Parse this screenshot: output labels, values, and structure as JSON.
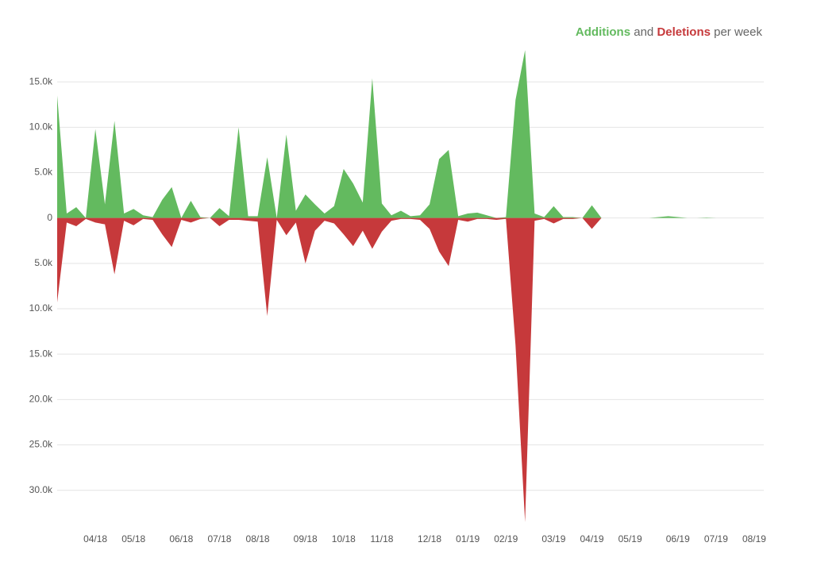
{
  "chart_data": {
    "type": "area",
    "title_parts": {
      "joiner": "and",
      "suffix": "per week"
    },
    "categories": [
      null,
      null,
      null,
      null,
      "04/18",
      null,
      null,
      null,
      "05/18",
      null,
      null,
      null,
      null,
      "06/18",
      null,
      null,
      null,
      "07/18",
      null,
      null,
      null,
      "08/18",
      null,
      null,
      null,
      null,
      "09/18",
      null,
      null,
      null,
      "10/18",
      null,
      null,
      null,
      "11/18",
      null,
      null,
      null,
      null,
      "12/18",
      null,
      null,
      null,
      "01/19",
      null,
      null,
      null,
      "02/19",
      null,
      null,
      null,
      null,
      "03/19",
      null,
      null,
      null,
      "04/19",
      null,
      null,
      null,
      "05/19",
      null,
      null,
      null,
      null,
      "06/19",
      null,
      null,
      null,
      "07/19",
      null,
      null,
      null,
      "08/19",
      null
    ],
    "series": [
      {
        "name": "Additions",
        "color": "#63ba5f",
        "values": [
          13500,
          500,
          1200,
          0,
          9800,
          1500,
          10700,
          500,
          1000,
          300,
          100,
          2000,
          3400,
          0,
          1900,
          100,
          0,
          1100,
          200,
          10000,
          200,
          200,
          6700,
          0,
          9200,
          800,
          2600,
          1500,
          500,
          1300,
          5400,
          3800,
          1700,
          15400,
          1600,
          300,
          800,
          200,
          300,
          1500,
          6500,
          7500,
          200,
          500,
          600,
          300,
          0,
          100,
          13000,
          18500,
          500,
          100,
          1300,
          100,
          100,
          0,
          1400,
          0,
          0,
          0,
          0,
          0,
          0,
          100,
          200,
          100,
          0,
          0,
          50,
          0,
          0,
          0,
          0,
          0,
          0
        ]
      },
      {
        "name": "Deletions",
        "color": "#c6393b",
        "values": [
          -9300,
          -500,
          -900,
          -100,
          -500,
          -700,
          -6200,
          -300,
          -800,
          -100,
          -200,
          -1800,
          -3200,
          -200,
          -500,
          -100,
          0,
          -900,
          -200,
          -200,
          -300,
          -400,
          -10800,
          -200,
          -1900,
          -500,
          -5000,
          -1400,
          -300,
          -600,
          -1800,
          -3100,
          -1400,
          -3400,
          -1500,
          -300,
          -100,
          -100,
          -200,
          -1200,
          -3700,
          -5300,
          -200,
          -400,
          -100,
          -100,
          -200,
          -100,
          -14000,
          -33500,
          -300,
          -100,
          -600,
          -100,
          -100,
          0,
          -1200,
          0,
          0,
          0,
          0,
          0,
          0,
          0,
          0,
          0,
          0,
          0,
          0,
          0,
          0,
          0,
          0,
          0,
          0
        ]
      }
    ],
    "ylim": [
      -33700,
      18600
    ],
    "yticks": [
      {
        "value": 15000,
        "label": "15.0k"
      },
      {
        "value": 10000,
        "label": "10.0k"
      },
      {
        "value": 5000,
        "label": "5.0k"
      },
      0,
      {
        "value": -5000,
        "label": "5.0k"
      },
      {
        "value": -10000,
        "label": "10.0k"
      },
      {
        "value": -15000,
        "label": "15.0k"
      },
      {
        "value": -20000,
        "label": "20.0k"
      },
      {
        "value": -25000,
        "label": "25.0k"
      },
      {
        "value": -30000,
        "label": "30.0k"
      }
    ],
    "grid": true
  }
}
